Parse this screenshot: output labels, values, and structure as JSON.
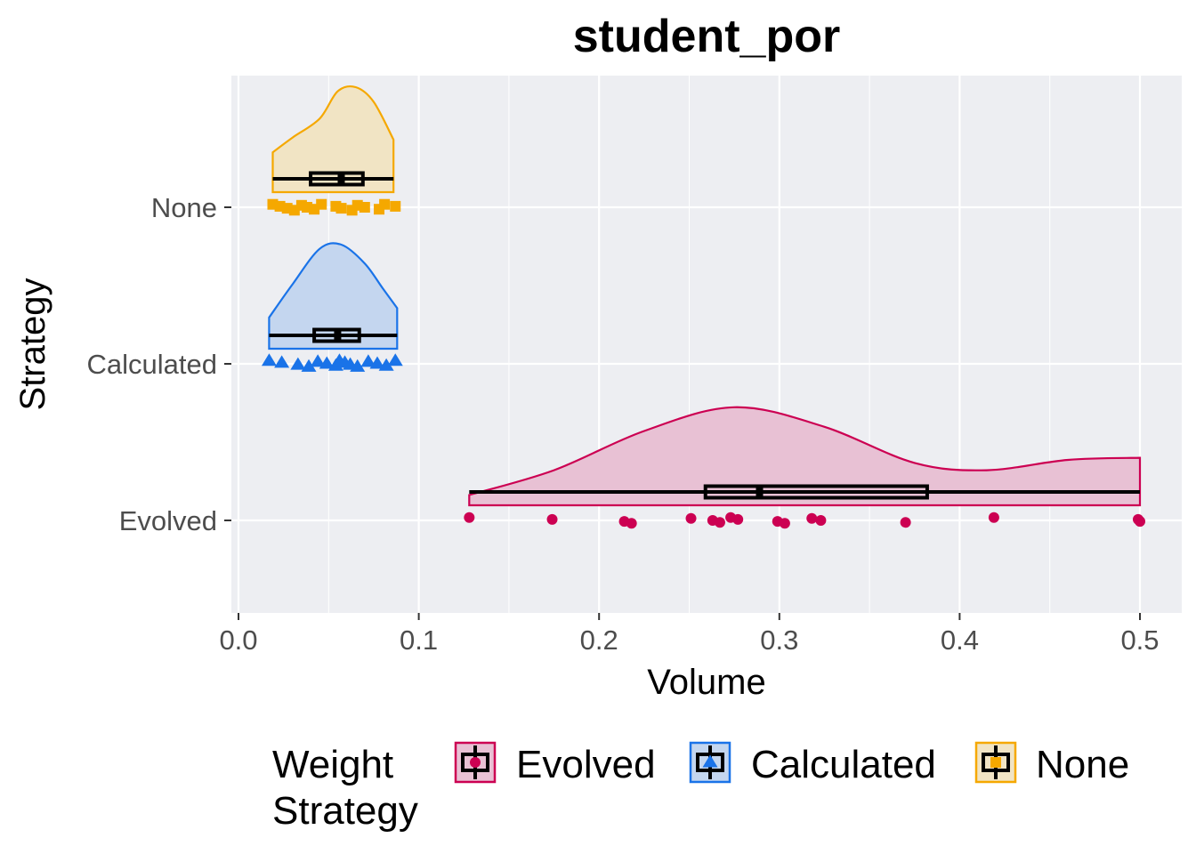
{
  "chart_data": {
    "type": "raincloud",
    "title": "student_por",
    "xlabel": "Volume",
    "ylabel": "Strategy",
    "xlim": [
      -0.005,
      0.52
    ],
    "x_ticks": [
      0.0,
      0.1,
      0.2,
      0.3,
      0.4,
      0.5
    ],
    "x_tick_labels": [
      "0.0",
      "0.1",
      "0.2",
      "0.3",
      "0.4",
      "0.5"
    ],
    "categories": [
      "None",
      "Calculated",
      "Evolved"
    ],
    "grid": true,
    "legend": {
      "title": "Weight\nStrategy",
      "position": "bottom",
      "entries": [
        "Evolved",
        "Calculated",
        "None"
      ]
    },
    "series": [
      {
        "name": "Evolved",
        "color": "#cc0052",
        "fill": "#e8c1d4",
        "marker": "circle",
        "box": {
          "min": 0.128,
          "q1": 0.259,
          "median": 0.289,
          "q3": 0.382,
          "max": 0.5
        },
        "density": [
          [
            0.128,
            0.1
          ],
          [
            0.175,
            0.34
          ],
          [
            0.225,
            0.72
          ],
          [
            0.275,
            0.95
          ],
          [
            0.325,
            0.76
          ],
          [
            0.375,
            0.41
          ],
          [
            0.415,
            0.34
          ],
          [
            0.46,
            0.44
          ],
          [
            0.5,
            0.46
          ]
        ],
        "points": [
          0.128,
          0.174,
          0.214,
          0.218,
          0.251,
          0.263,
          0.267,
          0.273,
          0.277,
          0.299,
          0.303,
          0.318,
          0.323,
          0.37,
          0.419,
          0.499,
          0.5
        ]
      },
      {
        "name": "Calculated",
        "color": "#1a73e8",
        "fill": "#c4d6ef",
        "marker": "triangle",
        "box": {
          "min": 0.017,
          "q1": 0.042,
          "median": 0.055,
          "q3": 0.067,
          "max": 0.088
        },
        "density": [
          [
            0.017,
            0.3
          ],
          [
            0.03,
            0.62
          ],
          [
            0.045,
            0.96
          ],
          [
            0.057,
            1.0
          ],
          [
            0.07,
            0.82
          ],
          [
            0.08,
            0.58
          ],
          [
            0.088,
            0.39
          ]
        ],
        "points": [
          0.017,
          0.024,
          0.033,
          0.039,
          0.044,
          0.049,
          0.054,
          0.056,
          0.059,
          0.062,
          0.066,
          0.072,
          0.077,
          0.082,
          0.087
        ]
      },
      {
        "name": "None",
        "color": "#f5a800",
        "fill": "#f1e4c4",
        "marker": "square",
        "box": {
          "min": 0.019,
          "q1": 0.04,
          "median": 0.057,
          "q3": 0.069,
          "max": 0.086
        },
        "density": [
          [
            0.019,
            0.38
          ],
          [
            0.03,
            0.52
          ],
          [
            0.045,
            0.7
          ],
          [
            0.055,
            0.96
          ],
          [
            0.065,
            1.0
          ],
          [
            0.075,
            0.86
          ],
          [
            0.086,
            0.5
          ]
        ],
        "points": [
          0.019,
          0.023,
          0.027,
          0.031,
          0.035,
          0.038,
          0.042,
          0.046,
          0.054,
          0.057,
          0.063,
          0.066,
          0.07,
          0.078,
          0.081,
          0.087
        ]
      }
    ]
  }
}
